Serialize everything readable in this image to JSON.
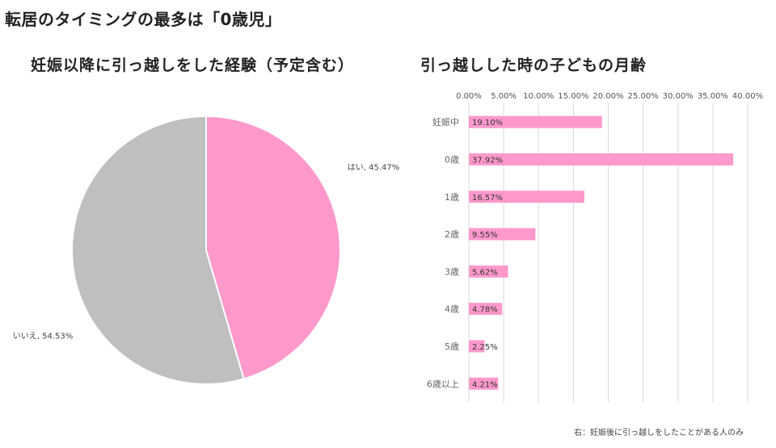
{
  "page": {
    "title": "転居のタイミングの最多は「0歳児」",
    "footnote": "右：妊娠後に引っ越しをしたことがある人のみ"
  },
  "colors": {
    "pink": "#ff99cc",
    "gray": "#bfbfbf",
    "grid": "#d9d9d9"
  },
  "chart_data": [
    {
      "type": "pie",
      "title": "妊娠以降に引っ越しをした経験（予定含む）",
      "slices": [
        {
          "label": "はい",
          "value": 45.47,
          "display": "はい, 45.47%",
          "color": "#ff99cc"
        },
        {
          "label": "いいえ",
          "value": 54.53,
          "display": "いいえ, 54.53%",
          "color": "#bfbfbf"
        }
      ]
    },
    {
      "type": "bar",
      "orientation": "horizontal",
      "title": "引っ越しした時の子どもの月齢",
      "categories": [
        "妊娠中",
        "0歳",
        "1歳",
        "2歳",
        "3歳",
        "4歳",
        "5歳",
        "6歳以上"
      ],
      "values": [
        19.1,
        37.92,
        16.57,
        9.55,
        5.62,
        4.78,
        2.25,
        4.21
      ],
      "value_labels": [
        "19.10%",
        "37.92%",
        "16.57%",
        "9.55%",
        "5.62%",
        "4.78%",
        "2.25%",
        "4.21%"
      ],
      "xlim": [
        0,
        40
      ],
      "xticks": [
        "0.00%",
        "5.00%",
        "10.00%",
        "15.00%",
        "20.00%",
        "25.00%",
        "30.00%",
        "35.00%",
        "40.00%"
      ],
      "grid": true,
      "color": "#ff99cc"
    }
  ]
}
